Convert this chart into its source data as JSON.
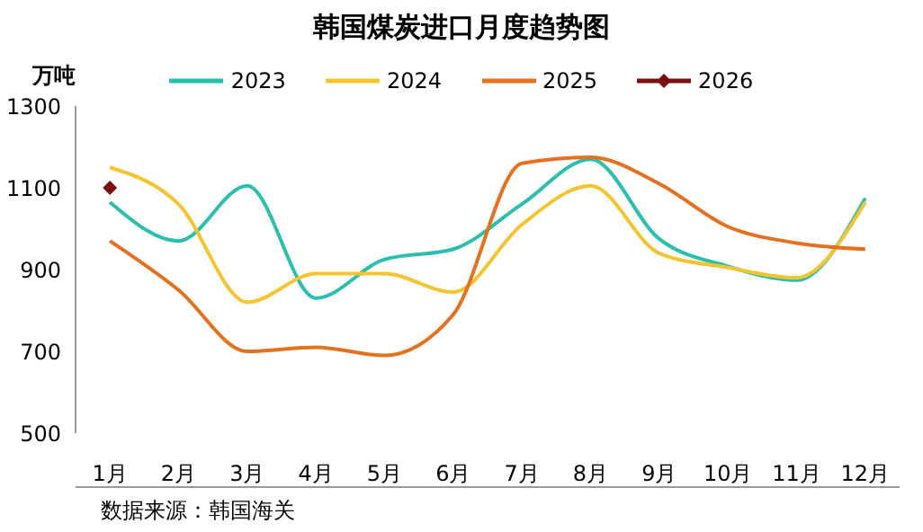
{
  "chart_data": {
    "type": "line",
    "title": "韩国煤炭进口月度趋势图",
    "ylabel": "万吨",
    "annotations": [
      "数据来源：韩国海关"
    ],
    "categories": [
      "1月",
      "2月",
      "3月",
      "4月",
      "5月",
      "6月",
      "7月",
      "8月",
      "9月",
      "10月",
      "11月",
      "12月"
    ],
    "series": [
      {
        "name": "2023",
        "color": "#2bbfad",
        "marker": "none",
        "values": [
          1065,
          970,
          1105,
          830,
          925,
          950,
          1060,
          1170,
          975,
          908,
          874,
          1075
        ]
      },
      {
        "name": "2024",
        "color": "#f5c431",
        "marker": "none",
        "values": [
          1150,
          1060,
          820,
          890,
          890,
          845,
          1010,
          1105,
          940,
          905,
          880,
          1065
        ]
      },
      {
        "name": "2025",
        "color": "#e5701e",
        "marker": "none",
        "values": [
          970,
          850,
          700,
          710,
          690,
          790,
          1160,
          1175,
          1110,
          1005,
          965,
          950
        ]
      },
      {
        "name": "2026",
        "color": "#7b1010",
        "marker": "diamond",
        "values": [
          1100,
          null,
          null,
          null,
          null,
          null,
          null,
          null,
          null,
          null,
          null,
          null
        ]
      }
    ],
    "ylim": [
      500,
      1300
    ],
    "yticks": [
      500,
      700,
      900,
      1100,
      1300
    ],
    "grid": false,
    "legend": "top",
    "line_style": "solid"
  }
}
